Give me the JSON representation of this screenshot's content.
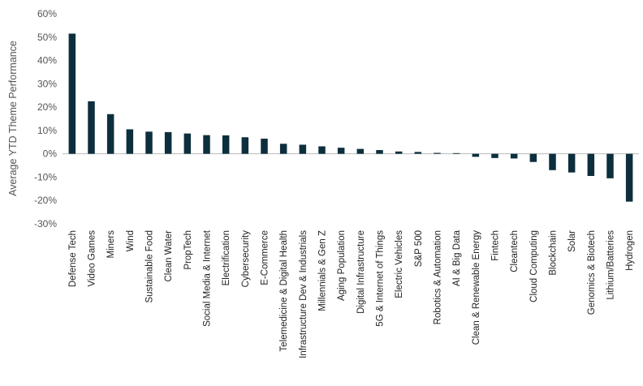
{
  "chart_data": {
    "type": "bar",
    "title": "",
    "xlabel": "",
    "ylabel": "Average YTD Theme Performance",
    "ylim": [
      -30,
      60
    ],
    "yticks": [
      60,
      50,
      40,
      30,
      20,
      10,
      0,
      -10,
      -20,
      -30
    ],
    "ytick_labels": [
      "60%",
      "50%",
      "40%",
      "30%",
      "20%",
      "10%",
      "0%",
      "-10%",
      "-20%",
      "-30%"
    ],
    "grid": false,
    "legend": "none",
    "bar_color": "#0d2f3d",
    "categories": [
      "Defense Tech",
      "Video Games",
      "Miners",
      "Wind",
      "Sustainable Food",
      "Clean Water",
      "PropTech",
      "Social Media & Internet",
      "Electrification",
      "Cybersecurity",
      "E-Commerce",
      "Telemedicine & Digital Health",
      "Infrastructure Dev & Industrials",
      "Millennials & Gen Z",
      "Aging Population",
      "Digital Infrastructure",
      "5G & Internet of Things",
      "Electric Vehicles",
      "S&P 500",
      "Robotics & Automation",
      "AI & Big Data",
      "Clean & Renewable Energy",
      "Fintech",
      "Cleantech",
      "Cloud Computing",
      "Blockchain",
      "Solar",
      "Genomics & Biotech",
      "Lithium/Batteries",
      "Hydrogen"
    ],
    "values": [
      51.5,
      22.5,
      17.0,
      10.5,
      9.5,
      9.3,
      8.7,
      8.0,
      7.9,
      7.1,
      6.5,
      4.3,
      3.9,
      3.2,
      2.6,
      2.1,
      1.6,
      1.0,
      0.8,
      0.4,
      0.3,
      -1.3,
      -1.8,
      -2.0,
      -3.5,
      -7.0,
      -8.0,
      -9.5,
      -10.5,
      -20.5
    ]
  }
}
